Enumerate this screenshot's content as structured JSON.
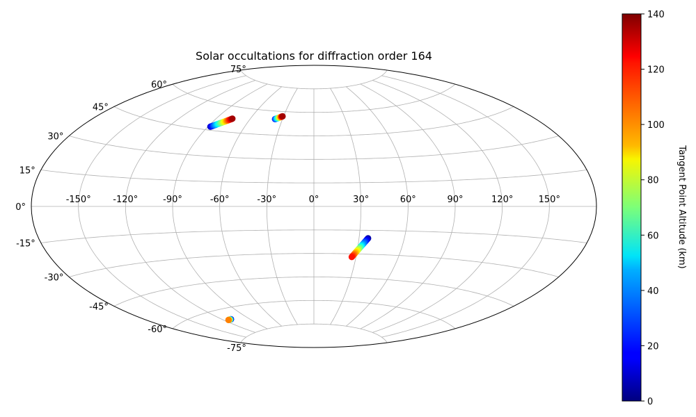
{
  "chart_data": {
    "type": "scatter",
    "projection": "aitoff",
    "title": "Solar occultations for diffraction order 164",
    "grid": true,
    "lon_tick_labels": [
      "-150°",
      "-120°",
      "-90°",
      "-60°",
      "-30°",
      "0°",
      "30°",
      "60°",
      "90°",
      "120°",
      "150°"
    ],
    "lon_ticks": [
      -150,
      -120,
      -90,
      -60,
      -30,
      0,
      30,
      60,
      90,
      120,
      150
    ],
    "lat_tick_labels": [
      "75°",
      "60°",
      "45°",
      "30°",
      "15°",
      "0°",
      "-15°",
      "-30°",
      "-45°",
      "-60°",
      "-75°"
    ],
    "lat_ticks": [
      75,
      60,
      45,
      30,
      15,
      0,
      -15,
      -30,
      -45,
      -60,
      -75
    ],
    "colorbar": {
      "label": "Tangent Point Altitude (km)",
      "colormap": "jet",
      "range": [
        0,
        140
      ],
      "tick_labels": [
        "140",
        "120",
        "100",
        "80",
        "60",
        "40",
        "20",
        "0"
      ],
      "ticks": [
        140,
        120,
        100,
        80,
        60,
        40,
        20,
        0
      ]
    },
    "series": [
      {
        "x_lon_deg": [
          -88,
          -84,
          -80,
          -76
        ],
        "y_lat_deg": [
          47,
          49,
          51,
          53
        ],
        "altitude_km": [
          10,
          50,
          90,
          135
        ]
      },
      {
        "x_lon_deg": [
          -37,
          -34,
          -31
        ],
        "y_lat_deg": [
          55,
          56,
          57
        ],
        "altitude_km": [
          20,
          70,
          135
        ]
      },
      {
        "x_lon_deg": [
          36,
          33,
          30,
          27
        ],
        "y_lat_deg": [
          -20,
          -24,
          -28,
          -32
        ],
        "altitude_km": [
          5,
          40,
          85,
          120
        ]
      },
      {
        "x_lon_deg": [
          -111,
          -113,
          -115
        ],
        "y_lat_deg": [
          -66,
          -66,
          -66
        ],
        "altitude_km": [
          5,
          60,
          105
        ]
      }
    ]
  }
}
